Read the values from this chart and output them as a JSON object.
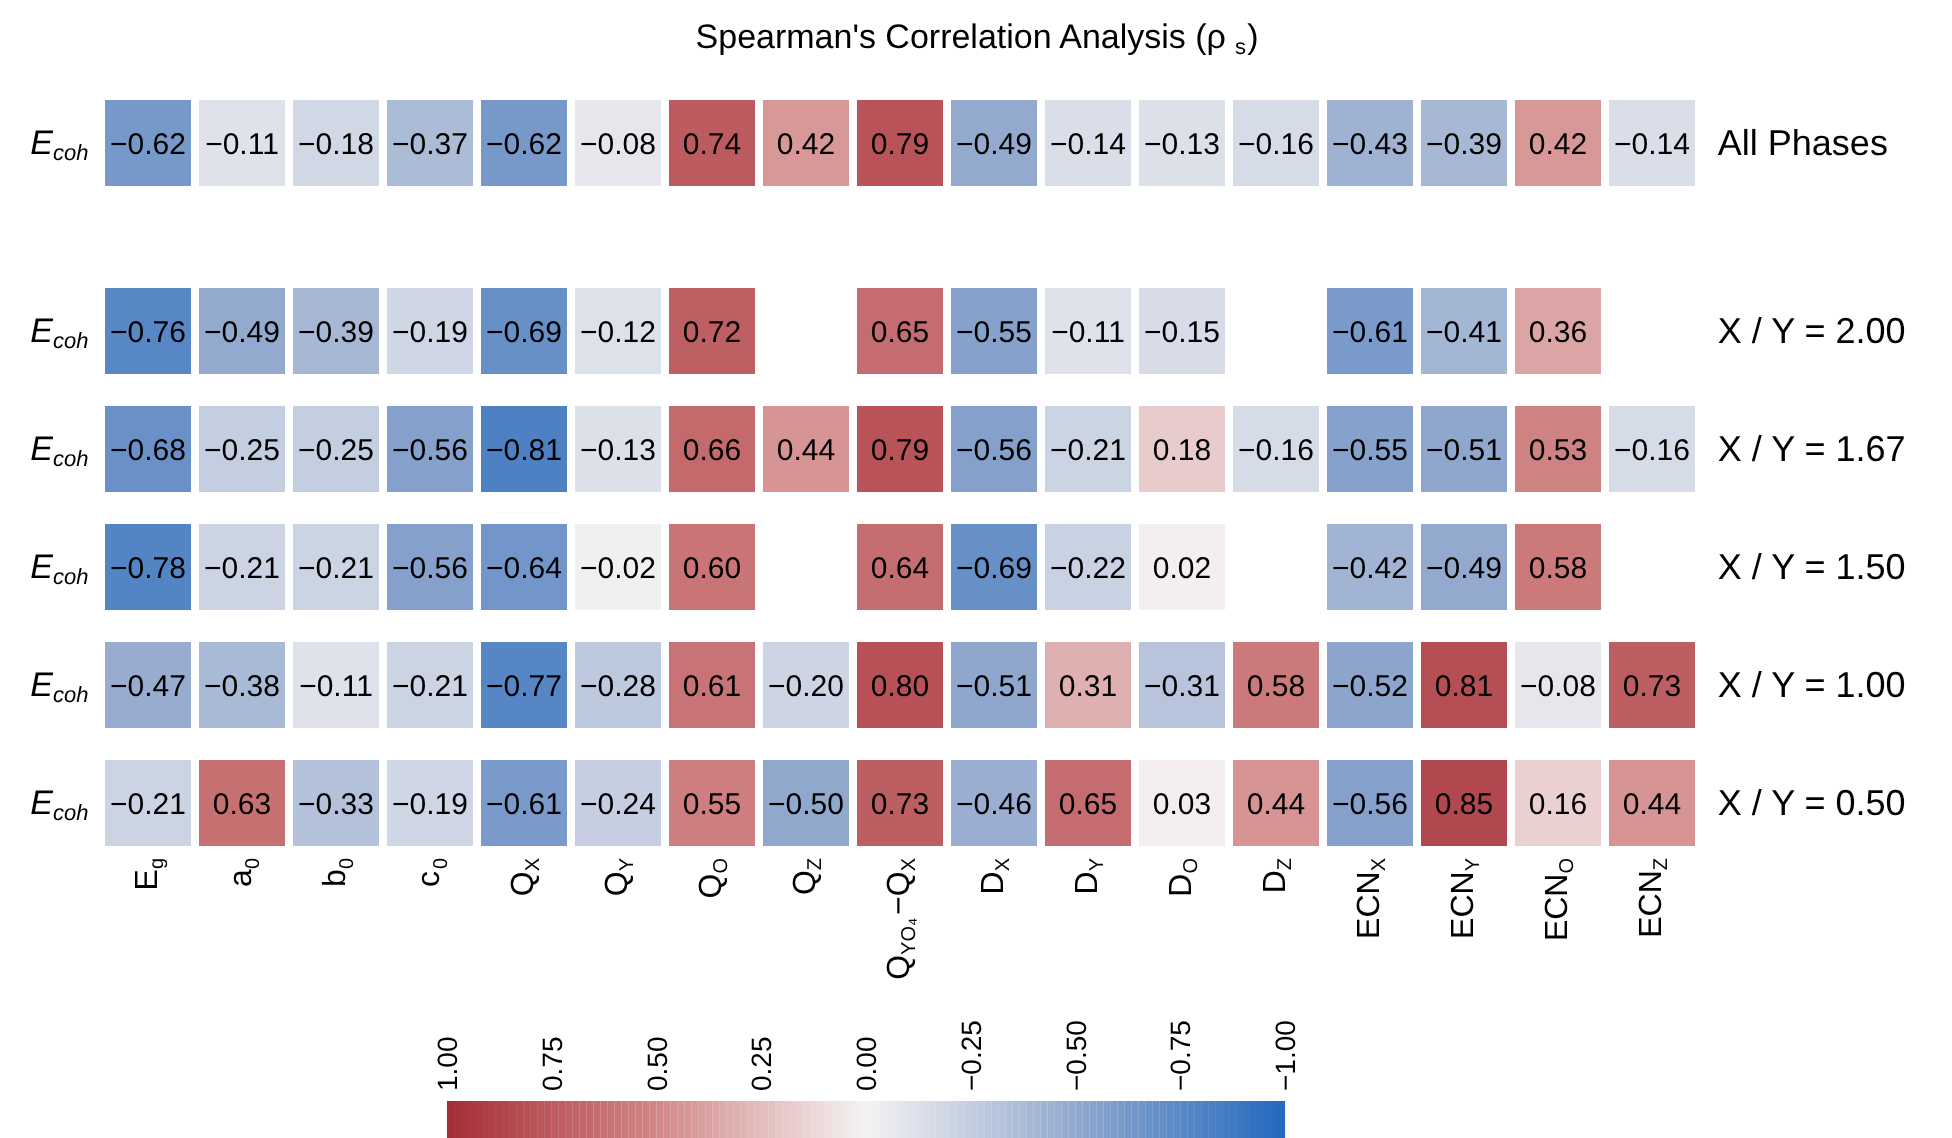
{
  "chart_data": [
    {
      "type": "heatmap",
      "title": "Spearman's Correlation Analysis (ρ$_{s}$)",
      "categories": [
        "E$_{g}$",
        "a$_{0}$",
        "b$_{0}$",
        "c$_{0}$",
        "Q$_{X}$",
        "Q$_{Y}$",
        "Q$_{O}$",
        "Q$_{Z}$",
        "Q$_{YO₄}$−Q$_{X}$",
        "D$_{X}$",
        "D$_{Y}$",
        "D$_{O}$",
        "D$_{Z}$",
        "ECN$_{X}$",
        "ECN$_{Y}$",
        "ECN$_{O}$",
        "ECN$_{Z}$"
      ],
      "y_categories": [
        "E$_{coh}$"
      ],
      "y2_categories": [
        "All Phases"
      ],
      "cells": [
        [
          -0.62,
          -0.11,
          -0.18,
          -0.37,
          -0.62,
          -0.08,
          0.74,
          0.42,
          0.79,
          -0.49,
          -0.14,
          -0.13,
          -0.16,
          -0.43,
          -0.39,
          0.42,
          -0.14
        ]
      ],
      "tick_labels": "y",
      "data_labels": true
    },
    {
      "type": "heatmap",
      "categories": [
        "E$_{g}$",
        "a$_{0}$",
        "b$_{0}$",
        "c$_{0}$",
        "Q$_{X}$",
        "Q$_{Y}$",
        "Q$_{O}$",
        "Q$_{Z}$",
        "Q$_{YO₄}$−Q$_{X}$",
        "D$_{X}$",
        "D$_{Y}$",
        "D$_{O}$",
        "D$_{Z}$",
        "ECN$_{X}$",
        "ECN$_{Y}$",
        "ECN$_{O}$",
        "ECN$_{Z}$"
      ],
      "y_categories": [
        "E$_{coh}$",
        "E$_{coh}$",
        "E$_{coh}$",
        "E$_{coh}$",
        "E$_{coh}$"
      ],
      "y2_categories": [
        "X / Y = 2.00",
        "X / Y = 1.67",
        "X / Y = 1.50",
        "X / Y = 1.00",
        "X / Y = 0.50"
      ],
      "cells": [
        [
          -0.76,
          -0.49,
          -0.39,
          -0.19,
          -0.69,
          -0.12,
          0.72,
          null,
          0.65,
          -0.55,
          -0.11,
          -0.15,
          null,
          -0.61,
          -0.41,
          0.36,
          null
        ],
        [
          -0.68,
          -0.25,
          -0.25,
          -0.56,
          -0.81,
          -0.13,
          0.66,
          0.44,
          0.79,
          -0.56,
          -0.21,
          0.18,
          -0.16,
          -0.55,
          -0.51,
          0.53,
          -0.16
        ],
        [
          -0.78,
          -0.21,
          -0.21,
          -0.56,
          -0.64,
          -0.02,
          0.6,
          null,
          0.64,
          -0.69,
          -0.22,
          0.02,
          null,
          -0.42,
          -0.49,
          0.58,
          null
        ],
        [
          -0.47,
          -0.38,
          -0.11,
          -0.21,
          -0.77,
          -0.28,
          0.61,
          -0.2,
          0.8,
          -0.51,
          0.31,
          -0.31,
          0.58,
          -0.52,
          0.81,
          -0.08,
          0.73
        ],
        [
          -0.21,
          0.63,
          -0.33,
          -0.19,
          -0.61,
          -0.24,
          0.55,
          -0.5,
          0.73,
          -0.46,
          0.65,
          0.03,
          0.44,
          -0.56,
          0.85,
          0.16,
          0.44
        ]
      ],
      "clim": [
        1,
        -1
      ],
      "cell_labels": [
        [
          "−0.76",
          "−0.49",
          "−0.39",
          "−0.19",
          "−0.69",
          "−0.12",
          "0.72",
          null,
          "0.65",
          "−0.55",
          "−0.11",
          "−0.15",
          null,
          "−0.61",
          "−0.41",
          "0.36",
          null
        ],
        [
          "−0.68",
          "−0.25",
          "−0.25",
          "−0.56",
          "−0.81",
          "−0.13",
          "0.66",
          "0.44",
          "0.79",
          "−0.56",
          "−0.21",
          "0.18",
          "−0.16",
          "−0.55",
          "−0.51",
          "0.53",
          "−0.16"
        ],
        [
          "−0.78",
          "−0.21",
          "−0.21",
          "−0.56",
          "−0.64",
          "−0.02",
          "0.60",
          null,
          "0.64",
          "−0.69",
          "−0.22",
          "0.02",
          null,
          "−0.42",
          "−0.49",
          "0.58",
          null
        ],
        [
          "−0.47",
          "−0.38",
          "−0.11",
          "−0.21",
          "−0.77",
          "−0.28",
          "0.61",
          "−0.20",
          "0.80",
          "−0.51",
          "0.31",
          "−0.31",
          "0.58",
          "−0.52",
          "0.81",
          "−0.08",
          "0.73"
        ],
        [
          "−0.21",
          "0.63",
          "−0.33",
          "−0.19",
          "−0.61",
          "−0.24",
          "0.55",
          "−0.50",
          "0.73",
          "−0.46",
          "0.65",
          "0.03",
          "0.44",
          "−0.56",
          "0.85",
          "0.16",
          "0.44"
        ]
      ],
      "cticks": [
        {
          "value": 1,
          "label": "1.00"
        },
        {
          "value": 0.75,
          "label": "0.75"
        },
        {
          "value": 0.5,
          "label": "0.50"
        },
        {
          "value": 0.25,
          "label": "0.25"
        },
        {
          "value": 0,
          "label": "0.00"
        },
        {
          "value": -0.25,
          "label": "−0.25"
        },
        {
          "value": -0.5,
          "label": "−0.50"
        },
        {
          "value": -0.75,
          "label": "−0.75"
        },
        {
          "value": -1,
          "label": "−1.00"
        }
      ]
    }
  ]
}
